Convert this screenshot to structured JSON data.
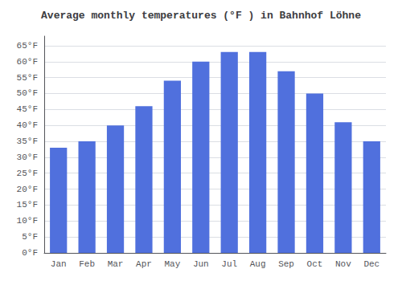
{
  "chart_data": {
    "type": "bar",
    "title": "Average monthly temperatures (°F ) in Bahnhof Löhne",
    "categories": [
      "Jan",
      "Feb",
      "Mar",
      "Apr",
      "May",
      "Jun",
      "Jul",
      "Aug",
      "Sep",
      "Oct",
      "Nov",
      "Dec"
    ],
    "values": [
      33,
      35,
      40,
      46,
      54,
      60,
      63,
      63,
      57,
      50,
      41,
      35
    ],
    "ylim": [
      0,
      68
    ],
    "yticks": [
      {
        "value": 0,
        "label": "0°F"
      },
      {
        "value": 5,
        "label": "5°F"
      },
      {
        "value": 10,
        "label": "10°F"
      },
      {
        "value": 15,
        "label": "15°F"
      },
      {
        "value": 20,
        "label": "20°F"
      },
      {
        "value": 25,
        "label": "25°F"
      },
      {
        "value": 30,
        "label": "30°F"
      },
      {
        "value": 35,
        "label": "35°F"
      },
      {
        "value": 40,
        "label": "40°F"
      },
      {
        "value": 45,
        "label": "45°F"
      },
      {
        "value": 50,
        "label": "50°F"
      },
      {
        "value": 55,
        "label": "55°F"
      },
      {
        "value": 60,
        "label": "60°F"
      },
      {
        "value": 65,
        "label": "65°F"
      }
    ],
    "grid": true
  }
}
